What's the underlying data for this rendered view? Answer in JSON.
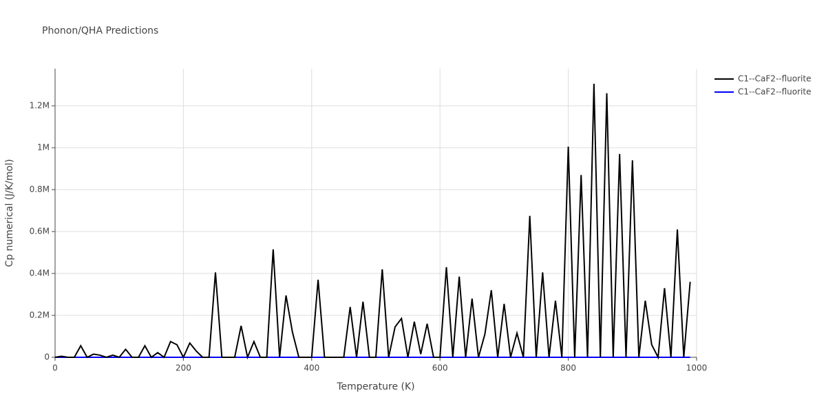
{
  "chart_data": {
    "type": "line",
    "title": "Phonon/QHA Predictions",
    "x_label": "Temperature (K)",
    "y_label": "Cp numerical (J/K/mol)",
    "x": [
      0,
      10,
      20,
      30,
      40,
      50,
      60,
      70,
      80,
      90,
      100,
      110,
      120,
      130,
      140,
      150,
      160,
      170,
      180,
      190,
      200,
      210,
      220,
      230,
      240,
      250,
      260,
      270,
      280,
      290,
      300,
      310,
      320,
      330,
      340,
      350,
      360,
      370,
      380,
      390,
      400,
      410,
      420,
      430,
      440,
      450,
      460,
      470,
      480,
      490,
      500,
      510,
      520,
      530,
      540,
      550,
      560,
      570,
      580,
      590,
      600,
      610,
      620,
      630,
      640,
      650,
      660,
      670,
      680,
      690,
      700,
      710,
      720,
      730,
      740,
      750,
      760,
      770,
      780,
      790,
      800,
      810,
      820,
      830,
      840,
      850,
      860,
      870,
      880,
      890,
      900,
      910,
      920,
      930,
      940,
      950,
      960,
      970,
      980,
      990
    ],
    "series": [
      {
        "name": "C1--CaF2--fluorite",
        "color": "#000000",
        "values": [
          0,
          5000,
          0,
          0,
          55000,
          0,
          15000,
          10000,
          0,
          10000,
          0,
          38000,
          0,
          0,
          55000,
          0,
          22000,
          0,
          75000,
          60000,
          0,
          68000,
          30000,
          0,
          0,
          405000,
          0,
          0,
          0,
          150000,
          0,
          75000,
          0,
          0,
          515000,
          0,
          295000,
          120000,
          0,
          0,
          0,
          370000,
          0,
          0,
          0,
          0,
          240000,
          0,
          265000,
          0,
          0,
          420000,
          0,
          145000,
          185000,
          0,
          170000,
          15000,
          160000,
          0,
          0,
          430000,
          0,
          385000,
          0,
          280000,
          0,
          110000,
          320000,
          0,
          255000,
          0,
          115000,
          0,
          675000,
          0,
          405000,
          0,
          270000,
          0,
          1005000,
          0,
          870000,
          0,
          1305000,
          0,
          1260000,
          0,
          970000,
          0,
          940000,
          0,
          270000,
          60000,
          0,
          330000,
          0,
          610000,
          0,
          360000
        ]
      },
      {
        "name": "C1--CaF2--fluorite",
        "color": "#0000ff",
        "values": [
          0,
          0,
          0,
          0,
          0,
          0,
          0,
          0,
          0,
          0,
          0,
          0,
          0,
          0,
          0,
          0,
          0,
          0,
          0,
          0,
          0,
          0,
          0,
          0,
          0,
          0,
          0,
          0,
          0,
          0,
          0,
          0,
          0,
          0,
          0,
          0,
          0,
          0,
          0,
          0,
          0,
          0,
          0,
          0,
          0,
          0,
          0,
          0,
          0,
          0,
          0,
          0,
          0,
          0,
          0,
          0,
          0,
          0,
          0,
          0,
          0,
          0,
          0,
          0,
          0,
          0,
          0,
          0,
          0,
          0,
          0,
          0,
          0,
          0,
          0,
          0,
          0,
          0,
          0,
          0,
          0,
          0,
          0,
          0,
          0,
          0,
          0,
          0,
          0,
          0,
          0,
          0,
          0,
          0,
          0,
          0,
          0,
          0,
          0,
          0
        ]
      }
    ],
    "xlim": [
      0,
      1000
    ],
    "xticks": [
      0,
      200,
      400,
      600,
      800,
      1000
    ],
    "ylim": [
      0,
      1377000
    ],
    "yticks": [
      0,
      {
        "value": 200000,
        "label": "0.2M"
      },
      {
        "value": 400000,
        "label": "0.4M"
      },
      {
        "value": 600000,
        "label": "0.6M"
      },
      {
        "value": 800000,
        "label": "0.8M"
      },
      {
        "value": 1000000,
        "label": "1M"
      },
      {
        "value": 1200000,
        "label": "1.2M"
      }
    ],
    "grid": true,
    "legend": "right"
  }
}
